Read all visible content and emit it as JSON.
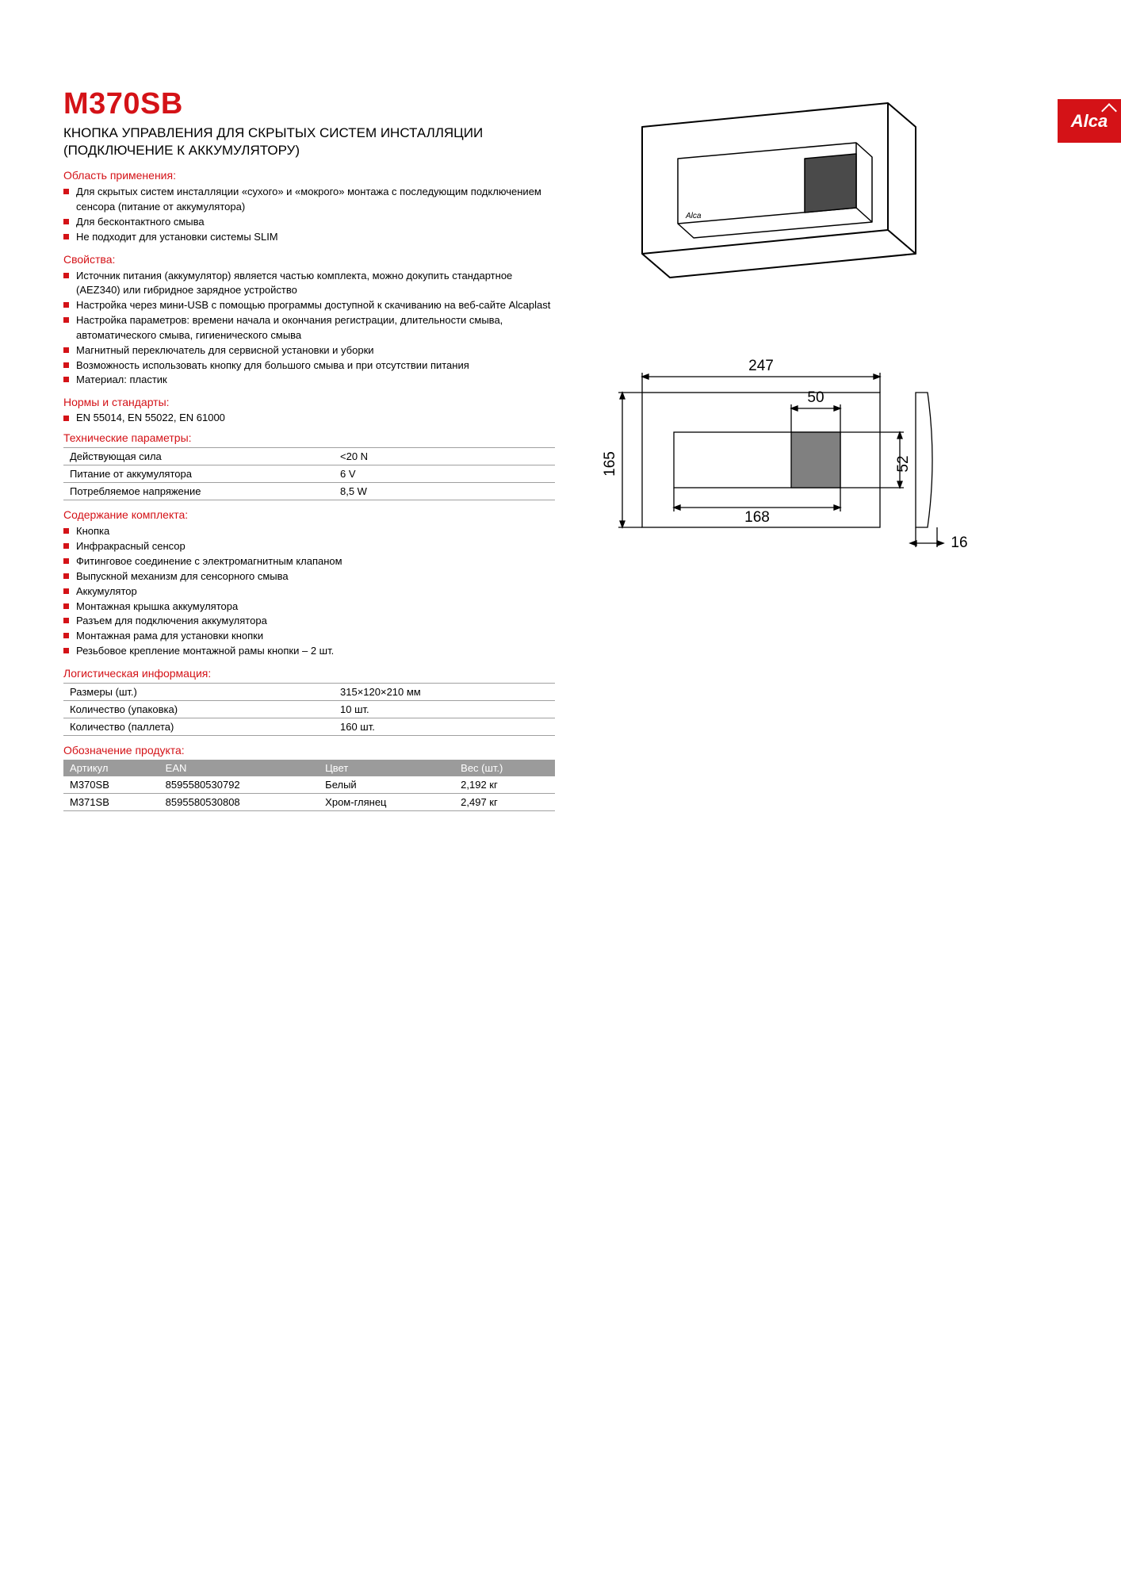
{
  "brand": "Alca",
  "accent_color": "#d41217",
  "product_code": "M370SB",
  "subtitle": "КНОПКА УПРАВЛЕНИЯ ДЛЯ СКРЫТЫХ СИСТЕМ ИНСТАЛЛЯЦИИ (ПОДКЛЮЧЕНИЕ К АККУМУЛЯТОРУ)",
  "sections": {
    "application": {
      "title": "Область применения:",
      "items": [
        "Для скрытых систем инсталляции «сухого» и «мокрого» монтажа с последующим подключением сенсора (питание от аккумулятора)",
        "Для бесконтактного смыва",
        "Не подходит для установки системы SLIM"
      ]
    },
    "properties": {
      "title": "Свойства:",
      "items": [
        "Источник питания (аккумулятор) является частью комплекта, можно докупить стандартное (AEZ340) или гибридное зарядное устройство",
        "Настройка через мини-USB с помощью программы доступной к скачиванию на веб-сайте Alcaplast",
        "Настройка параметров: времени начала и окончания регистрации, длительности смыва, автоматического смыва, гигиенического смыва",
        "Магнитный переключатель для сервисной установки и уборки",
        "Возможность использовать кнопку для большого смыва и при отсутствии питания",
        "Материал: пластик"
      ]
    },
    "standards": {
      "title": "Нормы и стандарты:",
      "text": "EN 55014, EN 55022, EN 61000"
    },
    "tech": {
      "title": "Технические параметры:",
      "rows": [
        [
          "Действующая сила",
          "<20 N"
        ],
        [
          "Питание от аккумулятора",
          "6 V"
        ],
        [
          "Потребляемое напряжение",
          "8,5 W"
        ]
      ]
    },
    "contents": {
      "title": "Содержание комплекта:",
      "items": [
        "Кнопка",
        "Инфракрасный сенсор",
        "Фитинговое соединение с электромагнитным клапаном",
        "Выпускной механизм для сенсорного смыва",
        "Аккумулятор",
        "Монтажная крышка аккумулятора",
        "Разъем для подключения аккумулятора",
        "Монтажная рама для установки кнопки",
        "Резьбовое крепление монтажной рамы кнопки – 2 шт."
      ]
    },
    "logistics": {
      "title": "Логистическая информация:",
      "rows": [
        [
          "Размеры (шт.)",
          "315×120×210 мм"
        ],
        [
          "Количество (упаковка)",
          "10 шт."
        ],
        [
          "Количество (паллета)",
          "160 шт."
        ]
      ]
    },
    "product_table": {
      "title": "Обозначение продукта:",
      "headers": [
        "Артикул",
        "EAN",
        "Цвет",
        "Вес (шт.)"
      ],
      "rows": [
        [
          "M370SB",
          "8595580530792",
          "Белый",
          "2,192 кг"
        ],
        [
          "M371SB",
          "8595580530808",
          "Хром-глянец",
          "2,497 кг"
        ]
      ]
    }
  },
  "dimensions": {
    "width": "247",
    "height": "165",
    "button_width": "168",
    "sensor_width": "50",
    "sensor_height": "52",
    "depth": "16"
  }
}
